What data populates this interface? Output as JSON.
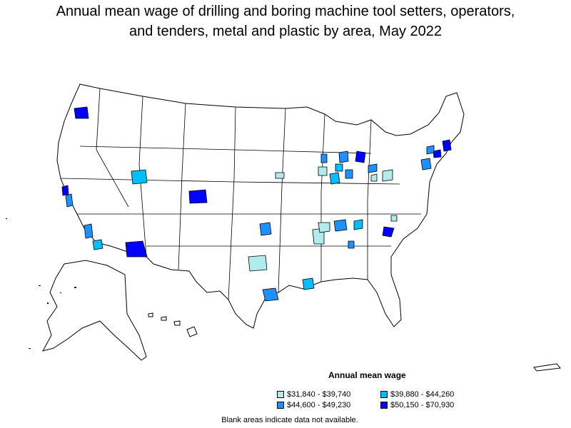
{
  "title_line1": "Annual mean wage of drilling and boring machine tool setters, operators,",
  "title_line2": "and tenders, metal and plastic by area, May 2022",
  "legend": {
    "title": "Annual mean wage",
    "items": [
      {
        "label": "$31,840 - $39,740",
        "color": "#b2ebeb"
      },
      {
        "label": "$39,880 - $44,260",
        "color": "#00bfff"
      },
      {
        "label": "$44,600 - $49,230",
        "color": "#1e90ff"
      },
      {
        "label": "$50,150 - $70,930",
        "color": "#0000ff"
      }
    ]
  },
  "footnote": "Blank areas indicate data not available.",
  "colors": {
    "band1": "#b2ebeb",
    "band2": "#00bfff",
    "band3": "#1e90ff",
    "band4": "#0000ff",
    "border": "#000000",
    "background": "#ffffff"
  }
}
